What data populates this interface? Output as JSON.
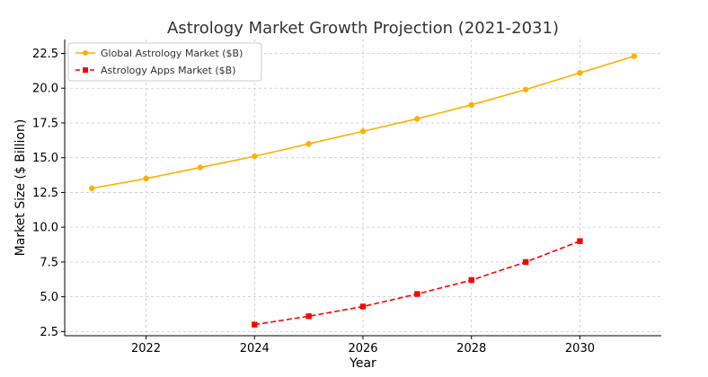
{
  "chart_data": {
    "type": "line",
    "title": "Astrology Market Growth Projection (2021-2031)",
    "xlabel": "Year",
    "ylabel": "Market Size ($ Billion)",
    "xlim": [
      2020.5,
      2031.5
    ],
    "ylim": [
      2.2,
      23.5
    ],
    "x_ticks": [
      2022,
      2024,
      2026,
      2028,
      2030
    ],
    "x_tick_labels": [
      "2022",
      "2024",
      "2026",
      "2028",
      "2030"
    ],
    "y_ticks": [
      2.5,
      5.0,
      7.5,
      10.0,
      12.5,
      15.0,
      17.5,
      20.0,
      22.5
    ],
    "y_tick_labels": [
      "2.5",
      "5.0",
      "7.5",
      "10.0",
      "12.5",
      "15.0",
      "17.5",
      "20.0",
      "22.5"
    ],
    "grid": true,
    "legend_position": "top-left",
    "series": [
      {
        "name": "Global Astrology Market ($B)",
        "color": "#FFB000",
        "marker": "circle",
        "line_style": "solid",
        "x": [
          2021,
          2022,
          2023,
          2024,
          2025,
          2026,
          2027,
          2028,
          2029,
          2030,
          2031
        ],
        "values": [
          12.8,
          13.5,
          14.3,
          15.1,
          16.0,
          16.9,
          17.8,
          18.8,
          19.9,
          21.1,
          22.3
        ]
      },
      {
        "name": "Astrology Apps Market ($B)",
        "color": "#FF0000",
        "marker": "square",
        "line_style": "dashed",
        "x": [
          2024,
          2025,
          2026,
          2027,
          2028,
          2029,
          2030
        ],
        "values": [
          3.0,
          3.6,
          4.3,
          5.2,
          6.2,
          7.5,
          9.0
        ]
      }
    ]
  }
}
